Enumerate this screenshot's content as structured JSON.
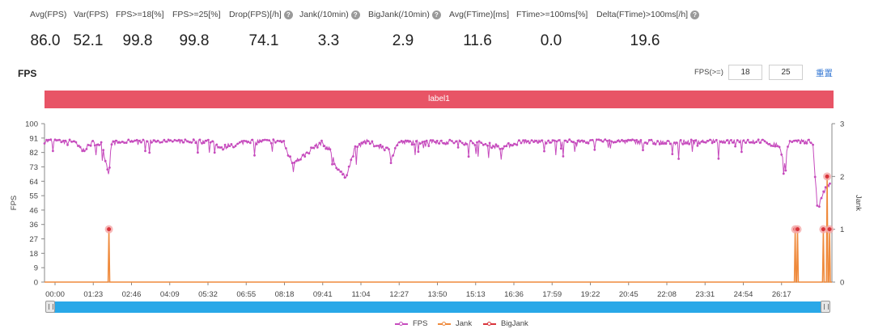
{
  "metrics": [
    {
      "label": "Avg(FPS)",
      "value": "86.0",
      "help": false
    },
    {
      "label": "Var(FPS)",
      "value": "52.1",
      "help": false
    },
    {
      "label": "FPS>=18[%]",
      "value": "99.8",
      "help": false
    },
    {
      "label": "FPS>=25[%]",
      "value": "99.8",
      "help": false
    },
    {
      "label": "Drop(FPS)[/h]",
      "value": "74.1",
      "help": true
    },
    {
      "label": "Jank(/10min)",
      "value": "3.3",
      "help": true
    },
    {
      "label": "BigJank(/10min)",
      "value": "2.9",
      "help": true
    },
    {
      "label": "Avg(FTime)[ms]",
      "value": "11.6",
      "help": false
    },
    {
      "label": "FTime>=100ms[%]",
      "value": "0.0",
      "help": false
    },
    {
      "label": "Delta(FTime)>100ms[/h]",
      "value": "19.6",
      "help": true
    }
  ],
  "section_title": "FPS",
  "threshold": {
    "label": "FPS(>=)",
    "value1": "18",
    "value2": "25",
    "reset_label": "重置"
  },
  "label_bar": "label1",
  "help_icon": "question-circle-icon",
  "chart_data": {
    "type": "line",
    "y_left_label": "FPS",
    "y_right_label": "Jank",
    "y_left_ticks": [
      "100",
      "91",
      "82",
      "73",
      "64",
      "55",
      "46",
      "36",
      "27",
      "18",
      "9",
      "0"
    ],
    "y_right_ticks": [
      "3",
      "2",
      "1",
      "0"
    ],
    "y_left_range": [
      0,
      100
    ],
    "y_right_range": [
      0,
      3
    ],
    "x_ticks": [
      "00:00",
      "01:23",
      "02:46",
      "04:09",
      "05:32",
      "06:55",
      "08:18",
      "09:41",
      "11:04",
      "12:27",
      "13:50",
      "15:13",
      "16:36",
      "17:59",
      "19:22",
      "20:45",
      "22:08",
      "23:31",
      "24:54",
      "26:17"
    ],
    "x_range_seconds": [
      0,
      1650
    ],
    "grid": false,
    "legend_position": "bottom",
    "series": [
      {
        "name": "FPS",
        "color": "#c64bbd",
        "profile": [
          [
            0,
            89
          ],
          [
            60,
            89
          ],
          [
            80,
            83
          ],
          [
            100,
            88
          ],
          [
            120,
            87
          ],
          [
            135,
            68
          ],
          [
            140,
            88
          ],
          [
            200,
            89
          ],
          [
            300,
            89
          ],
          [
            350,
            89
          ],
          [
            370,
            84
          ],
          [
            390,
            87
          ],
          [
            400,
            86
          ],
          [
            420,
            89
          ],
          [
            480,
            89
          ],
          [
            500,
            89
          ],
          [
            510,
            81
          ],
          [
            520,
            75
          ],
          [
            540,
            79
          ],
          [
            560,
            84
          ],
          [
            580,
            88
          ],
          [
            600,
            83
          ],
          [
            610,
            73
          ],
          [
            620,
            70
          ],
          [
            630,
            66
          ],
          [
            640,
            74
          ],
          [
            650,
            84
          ],
          [
            670,
            89
          ],
          [
            700,
            86
          ],
          [
            720,
            84
          ],
          [
            730,
            80
          ],
          [
            740,
            88
          ],
          [
            760,
            88
          ],
          [
            800,
            89
          ],
          [
            900,
            88
          ],
          [
            960,
            85
          ],
          [
            1000,
            89
          ],
          [
            1100,
            89
          ],
          [
            1200,
            89
          ],
          [
            1300,
            88
          ],
          [
            1400,
            89
          ],
          [
            1500,
            89
          ],
          [
            1540,
            86
          ],
          [
            1550,
            75
          ],
          [
            1560,
            88
          ],
          [
            1580,
            89
          ],
          [
            1600,
            89
          ],
          [
            1610,
            88
          ],
          [
            1620,
            45
          ],
          [
            1630,
            55
          ],
          [
            1640,
            60
          ],
          [
            1650,
            62
          ]
        ]
      },
      {
        "name": "Jank",
        "color": "#ef8a3c",
        "events": [
          [
            135,
            1
          ],
          [
            1573,
            1
          ],
          [
            1578,
            1
          ],
          [
            1632,
            1
          ],
          [
            1640,
            2
          ],
          [
            1645,
            1
          ]
        ]
      },
      {
        "name": "BigJank",
        "color": "#d9343b",
        "events": [
          [
            135,
            1
          ],
          [
            1573,
            1
          ],
          [
            1578,
            1
          ],
          [
            1632,
            1
          ],
          [
            1640,
            2
          ],
          [
            1645,
            1
          ]
        ]
      }
    ]
  },
  "legend": [
    {
      "label": "FPS",
      "color": "#c64bbd"
    },
    {
      "label": "Jank",
      "color": "#ef8a3c"
    },
    {
      "label": "BigJank",
      "color": "#d9343b"
    }
  ]
}
